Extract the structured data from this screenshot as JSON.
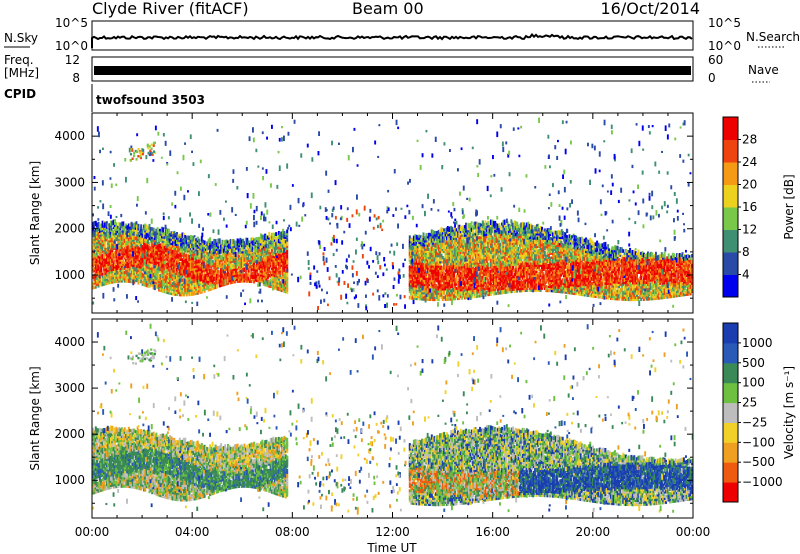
{
  "header": {
    "title": "Clyde River (fitACF)",
    "beam": "Beam 00",
    "date": "16/Oct/2014"
  },
  "noise_panel": {
    "left_label": "N.Sky",
    "right_label": "N.Search",
    "y_ticks": [
      "10^5",
      "10^0"
    ],
    "right_ticks": [
      "10^5",
      "10^0"
    ]
  },
  "freq_panel": {
    "left_label_1": "Freq.",
    "left_label_2": "[MHz]",
    "right_label": "Nave",
    "y_ticks": [
      "12",
      "8"
    ],
    "right_ticks": [
      "60",
      "0"
    ]
  },
  "cpid": {
    "label": "CPID",
    "value": "twofsound 3503"
  },
  "x_axis": {
    "label": "Time UT",
    "ticks": [
      "00:00",
      "04:00",
      "08:00",
      "12:00",
      "16:00",
      "20:00",
      "00:00"
    ]
  },
  "chart_data": [
    {
      "type": "heatmap",
      "title": "",
      "xlabel": "Time UT",
      "ylabel": "Slant Range [km]",
      "y_ticks": [
        1000,
        2000,
        3000,
        4000
      ],
      "ylim": [
        180,
        4500
      ],
      "xlim_hours": [
        0,
        24
      ],
      "colorbar": {
        "label": "Power [dB]",
        "ticks": [
          "4",
          "8",
          "12",
          "16",
          "20",
          "24",
          "28"
        ],
        "colors": [
          "#0000ee",
          "#2a4aa8",
          "#3f8f72",
          "#7ac84a",
          "#ecd21e",
          "#f49a14",
          "#ee4410",
          "#ee0000"
        ]
      },
      "regions": [
        {
          "t0": 0.0,
          "t1": 7.8,
          "r0": 800,
          "r1": 2000,
          "color": "#ee0000"
        },
        {
          "t0": 12.7,
          "t1": 24.0,
          "r0": 700,
          "r1": 2000,
          "color": "#ee0000"
        }
      ]
    },
    {
      "type": "heatmap",
      "title": "",
      "xlabel": "Time UT",
      "ylabel": "Slant Range [km]",
      "y_ticks": [
        1000,
        2000,
        3000,
        4000
      ],
      "ylim": [
        180,
        4500
      ],
      "xlim_hours": [
        0,
        24
      ],
      "colorbar": {
        "label": "Velocity [m s⁻¹]",
        "ticks": [
          "1000",
          "500",
          "100",
          "25",
          "−25",
          "−100",
          "−500",
          "−1000"
        ],
        "colors": [
          "#1a3eb0",
          "#2a5ab8",
          "#3a8a58",
          "#6ec040",
          "#bdbdbd",
          "#f2d02a",
          "#f0a020",
          "#ee5a10",
          "#ee0000"
        ]
      },
      "regions": [
        {
          "t0": 0.0,
          "t1": 7.8,
          "r0": 800,
          "r1": 2000,
          "color": "#4a9068"
        },
        {
          "t0": 12.7,
          "t1": 24.0,
          "r0": 700,
          "r1": 2000,
          "color": "#1a3eb0"
        }
      ]
    }
  ]
}
